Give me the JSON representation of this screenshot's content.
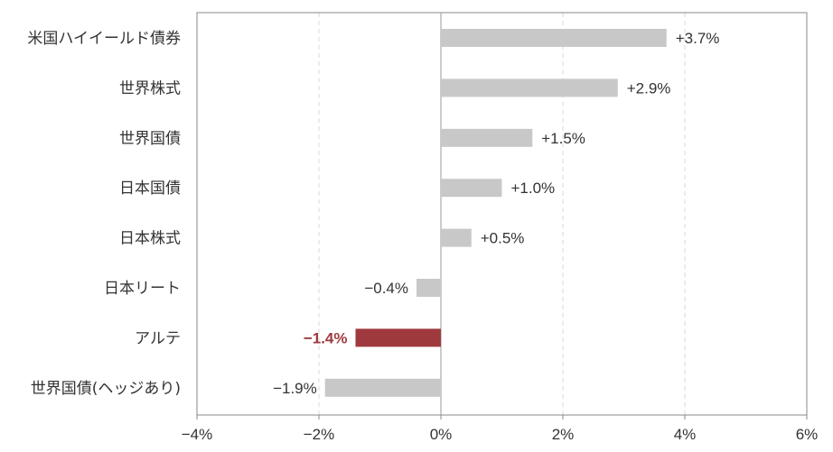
{
  "chart_data": {
    "type": "bar",
    "orientation": "horizontal",
    "categories": [
      "米国ハイイールド債券",
      "世界株式",
      "世界国債",
      "日本国債",
      "日本株式",
      "日本リート",
      "アルテ",
      "世界国債(ヘッジあり)"
    ],
    "values": [
      3.7,
      2.9,
      1.5,
      1.0,
      0.5,
      -0.4,
      -1.4,
      -1.9
    ],
    "value_labels": [
      "+3.7%",
      "+2.9%",
      "+1.5%",
      "+1.0%",
      "+0.5%",
      "−0.4%",
      "−1.4%",
      "−1.9%"
    ],
    "highlight_index": 6,
    "xlim": [
      -4,
      6
    ],
    "x_ticks": [
      -4,
      -2,
      0,
      2,
      4,
      6
    ],
    "x_tick_labels": [
      "−4%",
      "−2%",
      "0%",
      "2%",
      "4%",
      "6%"
    ],
    "grid": "vertical-dashed",
    "colors": {
      "bar": "#c8c8c8",
      "highlight": "#9e3a3e",
      "axis": "#888888",
      "grid": "#d9d9d9",
      "zero_line": "#999999"
    }
  }
}
